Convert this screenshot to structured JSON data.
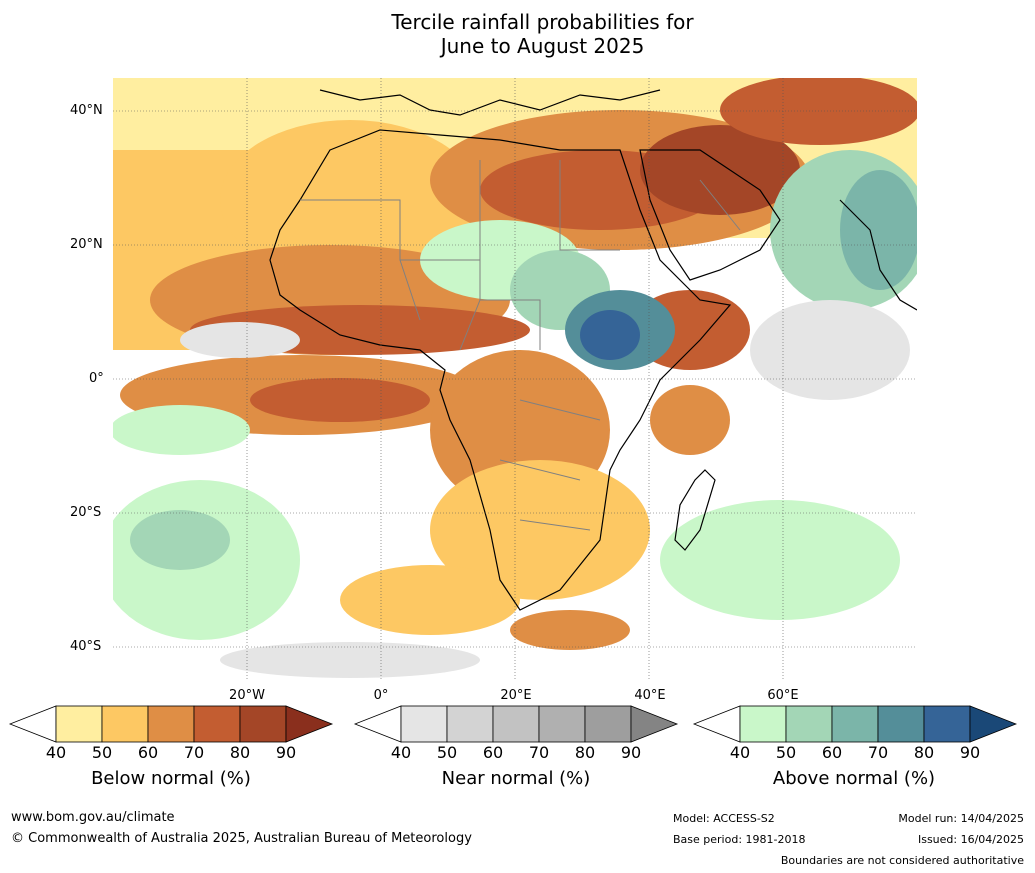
{
  "title": {
    "line1": "Tercile rainfall probabilities for",
    "line2": "June to August 2025"
  },
  "map": {
    "lat_labels": [
      "40°N",
      "20°N",
      "0°",
      "20°S",
      "40°S"
    ],
    "lon_labels": [
      "20°W",
      "0°",
      "20°E",
      "40°E",
      "60°E"
    ],
    "colors": {
      "below": [
        "#ffffff",
        "#ffeea0",
        "#fdc863",
        "#df8e45",
        "#c35d31",
        "#a44627",
        "#8a2f1d"
      ],
      "near": [
        "#ffffff",
        "#e5e5e5",
        "#d3d3d3",
        "#c2c2c2",
        "#b0b0b0",
        "#9e9e9e",
        "#848484"
      ],
      "above": [
        "#ffffff",
        "#c9f7c9",
        "#a3d6b6",
        "#7bb5a9",
        "#548e99",
        "#356497",
        "#1a4877"
      ],
      "land_outline": "#000000",
      "border": "#808080"
    }
  },
  "colorbars": [
    {
      "name": "below",
      "ticks": [
        "40",
        "50",
        "60",
        "70",
        "80",
        "90"
      ],
      "label": "Below normal (%)"
    },
    {
      "name": "near",
      "ticks": [
        "40",
        "50",
        "60",
        "70",
        "80",
        "90"
      ],
      "label": "Near normal (%)"
    },
    {
      "name": "above",
      "ticks": [
        "40",
        "50",
        "60",
        "70",
        "80",
        "90"
      ],
      "label": "Above normal (%)"
    }
  ],
  "footer": {
    "website": "www.bom.gov.au/climate",
    "copyright": "© Commonwealth of Australia 2025, Australian Bureau of Meteorology",
    "model": "Model: ACCESS-S2",
    "base_period": "Base period: 1981-2018",
    "model_run": "Model run: 14/04/2025",
    "issued": "Issued: 16/04/2025",
    "disclaimer": "Boundaries are not considered authoritative"
  }
}
